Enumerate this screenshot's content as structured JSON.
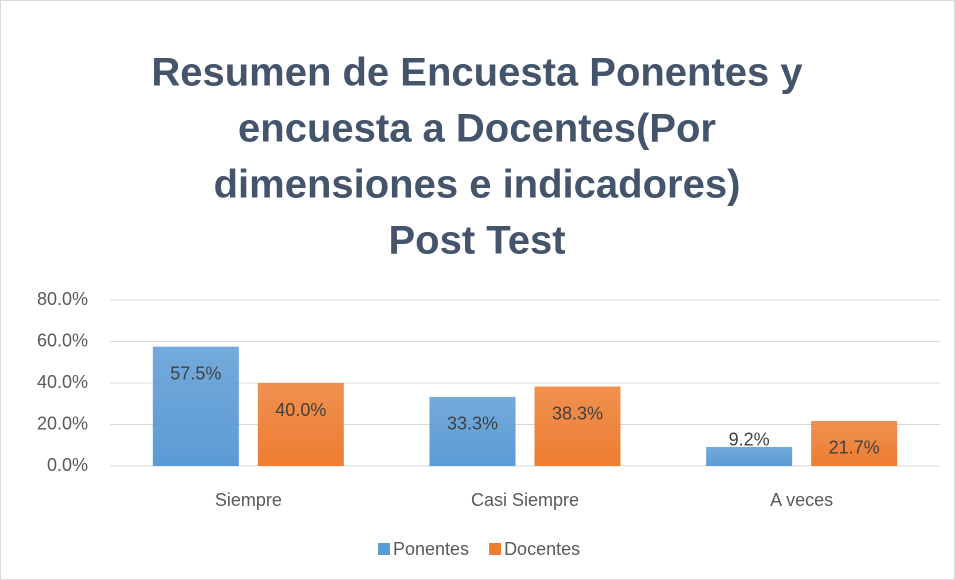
{
  "chart_data": {
    "type": "bar",
    "title": [
      "Resumen de Encuesta Ponentes y",
      "encuesta a Docentes(Por",
      "dimensiones e indicadores)",
      "Post Test"
    ],
    "categories": [
      "Siempre",
      "Casi Siempre",
      "A veces"
    ],
    "series": [
      {
        "name": "Ponentes",
        "color": "#5b9bd5",
        "values": [
          57.5,
          33.3,
          9.2
        ],
        "value_labels": [
          "57.5%",
          "33.3%",
          "9.2%"
        ]
      },
      {
        "name": "Docentes",
        "color": "#ed7d31",
        "values": [
          40.0,
          38.3,
          21.7
        ],
        "value_labels": [
          "40.0%",
          "38.3%",
          "21.7%"
        ]
      }
    ],
    "ylim": [
      0,
      80
    ],
    "yticks": [
      {
        "value": 0,
        "label": "0.0%"
      },
      {
        "value": 20,
        "label": "20.0%"
      },
      {
        "value": 40,
        "label": "40.0%"
      },
      {
        "value": 60,
        "label": "60.0%"
      },
      {
        "value": 80,
        "label": "80.0%"
      }
    ],
    "grid": true,
    "legend": "bottom"
  }
}
